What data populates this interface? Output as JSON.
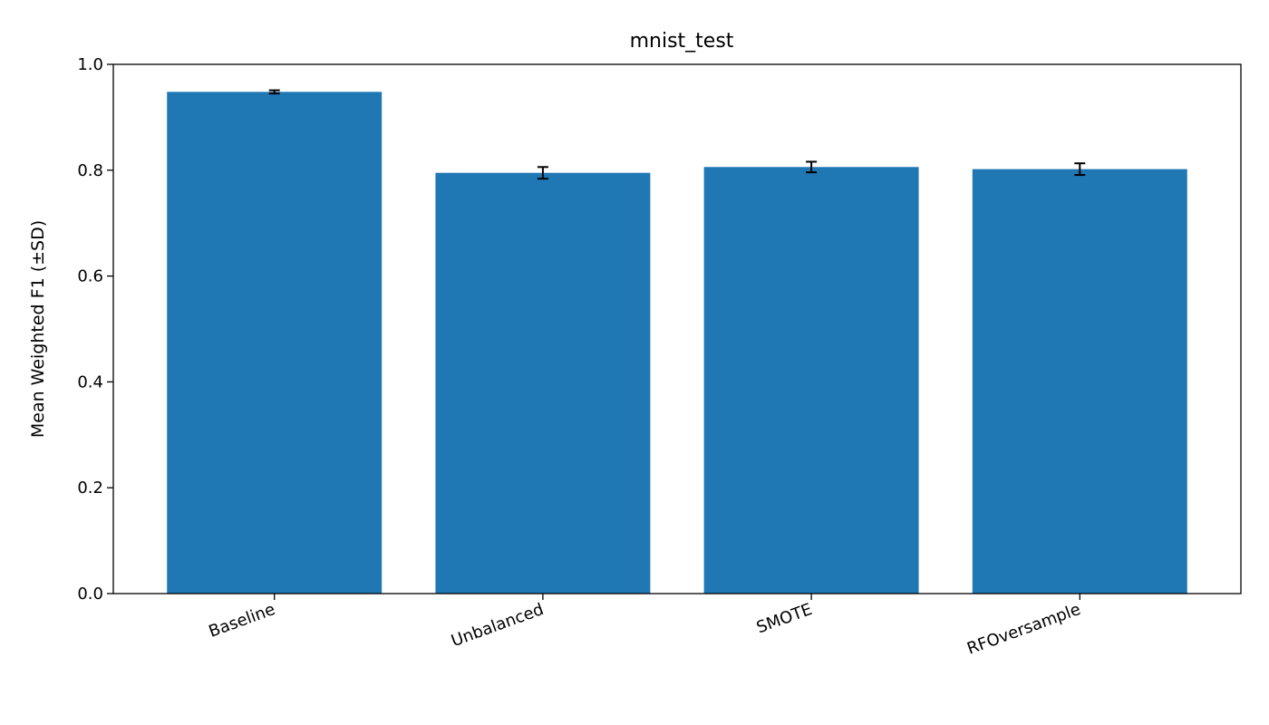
{
  "chart_data": {
    "type": "bar",
    "title": "mnist_test",
    "xlabel": "",
    "ylabel": "Mean Weighted F1 (±SD)",
    "categories": [
      "Baseline",
      "Unbalanced",
      "SMOTE",
      "RFOversample"
    ],
    "values": [
      0.948,
      0.795,
      0.806,
      0.802
    ],
    "errors": [
      0.003,
      0.011,
      0.01,
      0.011
    ],
    "ylim": [
      0,
      1.0
    ],
    "yticks": [
      0.0,
      0.2,
      0.4,
      0.6,
      0.8,
      1.0
    ],
    "ytick_labels": [
      "0.0",
      "0.2",
      "0.4",
      "0.6",
      "0.8",
      "1.0"
    ],
    "grid": false,
    "legend": "none",
    "bar_color": "#1f77b4",
    "error_color": "#000000"
  }
}
